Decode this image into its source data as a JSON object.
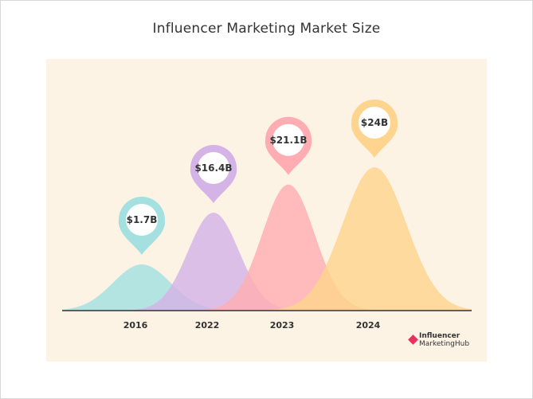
{
  "chart_data": {
    "type": "area",
    "title": "Influencer Marketing Market Size",
    "xlabel": "",
    "ylabel": "",
    "categories": [
      "2016",
      "2022",
      "2023",
      "2024"
    ],
    "values": [
      1.7,
      16.4,
      21.1,
      24
    ],
    "value_labels": [
      "$1.7B",
      "$16.4B",
      "$21.1B",
      "$24B"
    ],
    "unit": "USD billions",
    "colors": [
      "#a4e0e0",
      "#d4b3e6",
      "#ffadb2",
      "#ffd48e"
    ],
    "background": "#fdf3e5",
    "grid": false,
    "legend": "none"
  },
  "brand": {
    "line1": "Influencer",
    "line2": "MarketingHub",
    "mark_color": "#e8315f"
  }
}
